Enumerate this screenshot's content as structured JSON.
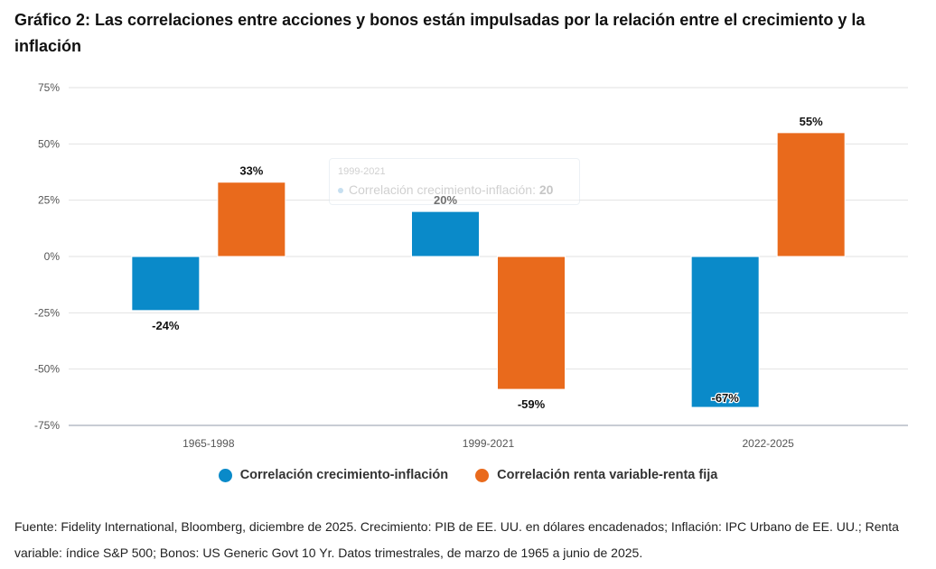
{
  "title": "Gráfico 2: Las correlaciones entre acciones y bonos están impulsadas por la relación entre el crecimiento y la inflación",
  "source": "Fuente: Fidelity International, Bloomberg, diciembre de 2025. Crecimiento: PIB de EE. UU. en dólares encadenados; Inflación: IPC Urbano de EE. UU.; Renta variable: índice S&P 500; Bonos: US Generic Govt 10 Yr. Datos trimestrales, de marzo de 1965 a junio de 2025.",
  "tooltip": {
    "header": "1999-2021",
    "series": "Correlación crecimiento-inflación:",
    "value": "20"
  },
  "chart_data": {
    "type": "bar",
    "title": "Gráfico 2: Las correlaciones entre acciones y bonos están impulsadas por la relación entre el crecimiento y la inflación",
    "xlabel": "",
    "ylabel": "",
    "categories": [
      "1965-1998",
      "1999-2021",
      "2022-2025"
    ],
    "series": [
      {
        "name": "Correlación crecimiento-inflación",
        "color": "#0a8ac9",
        "values": [
          -24,
          20,
          -67
        ],
        "labels": [
          "-24%",
          "20%",
          "-67%"
        ]
      },
      {
        "name": "Correlación renta variable-renta fija",
        "color": "#e96a1c",
        "values": [
          33,
          -59,
          55
        ],
        "labels": [
          "33%",
          "-59%",
          "55%"
        ]
      }
    ],
    "ylim": [
      -75,
      75
    ],
    "yticks": [
      75,
      50,
      25,
      0,
      -25,
      -50,
      -75
    ],
    "ytick_labels": [
      "75%",
      "50%",
      "25%",
      "0%",
      "-25%",
      "-50%",
      "-75%"
    ],
    "grid": true,
    "legend": "bottom-center"
  }
}
